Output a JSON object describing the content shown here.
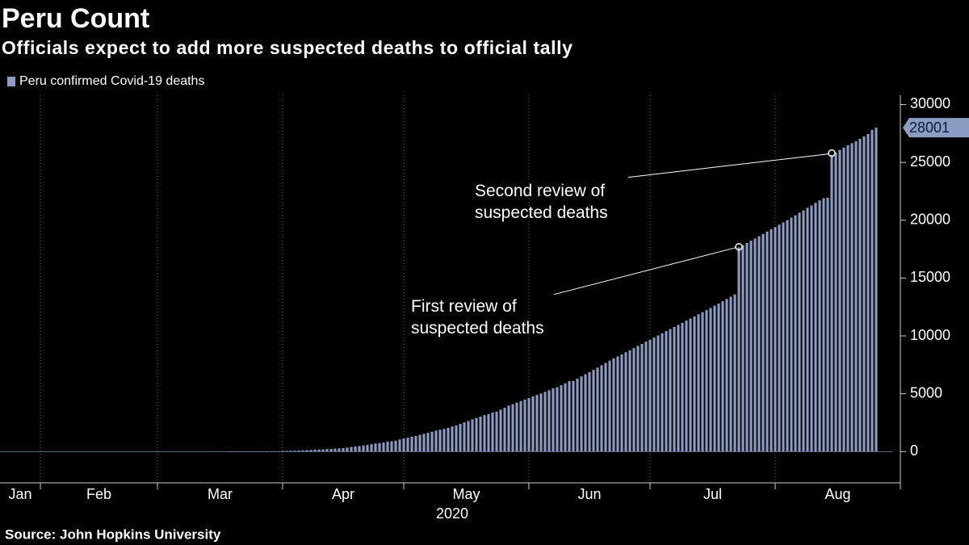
{
  "chart_data": {
    "type": "bar",
    "title": "Peru Count",
    "subtitle": "Officials expect to add more suspected deaths to official tally",
    "source": "Source: John Hopkins University",
    "year_label": "2020",
    "series": [
      {
        "name": "Peru confirmed Covid-19 deaths",
        "color": "#8c9dc4",
        "values": [
          1,
          3,
          5,
          5,
          7,
          9,
          9,
          11,
          16,
          18,
          24,
          30,
          30,
          55,
          61,
          73,
          83,
          92,
          107,
          121,
          138,
          169,
          181,
          193,
          216,
          230,
          254,
          274,
          300,
          348,
          400,
          445,
          484,
          530,
          572,
          634,
          700,
          728,
          782,
          854,
          893,
          943,
          1051,
          1124,
          1200,
          1286,
          1344,
          1444,
          1533,
          1627,
          1714,
          1814,
          1889,
          1961,
          2057,
          2169,
          2267,
          2392,
          2523,
          2648,
          2789,
          2914,
          3024,
          3148,
          3244,
          3373,
          3456,
          3629,
          3788,
          3983,
          4099,
          4230,
          4371,
          4506,
          4634,
          4767,
          4894,
          5031,
          5162,
          5301,
          5465,
          5571,
          5738,
          5903,
          6088,
          6109,
          6308,
          6498,
          6688,
          6860,
          7056,
          7257,
          7461,
          7660,
          7861,
          8045,
          8223,
          8404,
          8586,
          8761,
          8939,
          9135,
          9317,
          9504,
          9677,
          9860,
          10045,
          10226,
          10412,
          10589,
          10772,
          10952,
          11133,
          11314,
          11500,
          11682,
          11870,
          12054,
          12229,
          12417,
          12615,
          12799,
          12998,
          13187,
          13384,
          13579,
          17654,
          17843,
          18030,
          18229,
          18418,
          18612,
          18816,
          19021,
          19217,
          19408,
          19614,
          19811,
          20007,
          20228,
          20424,
          20649,
          20844,
          21072,
          21276,
          21501,
          21713,
          21900,
          21950,
          25648,
          25856,
          26075,
          26281,
          26481,
          26658,
          26834,
          27034,
          27245,
          27453,
          27813,
          28001
        ]
      }
    ],
    "x": [
      57,
      58,
      59,
      60,
      61,
      62,
      63,
      64,
      65,
      66,
      67,
      68,
      69,
      70,
      71,
      72,
      73,
      74,
      75,
      76,
      77,
      78,
      79,
      80,
      81,
      82,
      83,
      84,
      85,
      86,
      87,
      88,
      89,
      90,
      91,
      92,
      93,
      94,
      95,
      96,
      97,
      98,
      99,
      100,
      101,
      102,
      103,
      104,
      105,
      106,
      107,
      108,
      109,
      110,
      111,
      112,
      113,
      114,
      115,
      116,
      117,
      118,
      119,
      120,
      121,
      122,
      123,
      124,
      125,
      126,
      127,
      128,
      129,
      130,
      131,
      132,
      133,
      134,
      135,
      136,
      137,
      138,
      139,
      140,
      141,
      142,
      143,
      144,
      145,
      146,
      147,
      148,
      149,
      150,
      151,
      152,
      153,
      154,
      155,
      156,
      157,
      158,
      159,
      160,
      161,
      162,
      163,
      164,
      165,
      166,
      167,
      168,
      169,
      170,
      171,
      172,
      173,
      174,
      175,
      176,
      177,
      178,
      179,
      180,
      181,
      182,
      183,
      184,
      185,
      186,
      187,
      188,
      189,
      190,
      191,
      192,
      193,
      194,
      195,
      196,
      197,
      198,
      199,
      200,
      201,
      202,
      203,
      204,
      205,
      206,
      207,
      208,
      209,
      210,
      211,
      212,
      213,
      214,
      215,
      216,
      217
    ],
    "xlim": [
      0,
      223
    ],
    "xticks": [
      10,
      39,
      70,
      100,
      131,
      161,
      192,
      223
    ],
    "month_labels": [
      {
        "value": 5,
        "label": "Jan"
      },
      {
        "value": 24.5,
        "label": "Feb"
      },
      {
        "value": 54.5,
        "label": "Mar"
      },
      {
        "value": 85,
        "label": "Apr"
      },
      {
        "value": 115.5,
        "label": "May"
      },
      {
        "value": 146,
        "label": "Jun"
      },
      {
        "value": 176.5,
        "label": "Jul"
      },
      {
        "value": 207.5,
        "label": "Aug"
      }
    ],
    "ylim": [
      -2700,
      30800
    ],
    "yticks": [
      0,
      5000,
      10000,
      15000,
      20000,
      25000,
      30000
    ],
    "grid": true,
    "annotations": [
      {
        "lines": [
          "First review of",
          "suspected deaths"
        ],
        "x": 183,
        "y": 17700
      },
      {
        "lines": [
          "Second review of",
          "suspected deaths"
        ],
        "x": 206,
        "y": 25800
      }
    ]
  }
}
